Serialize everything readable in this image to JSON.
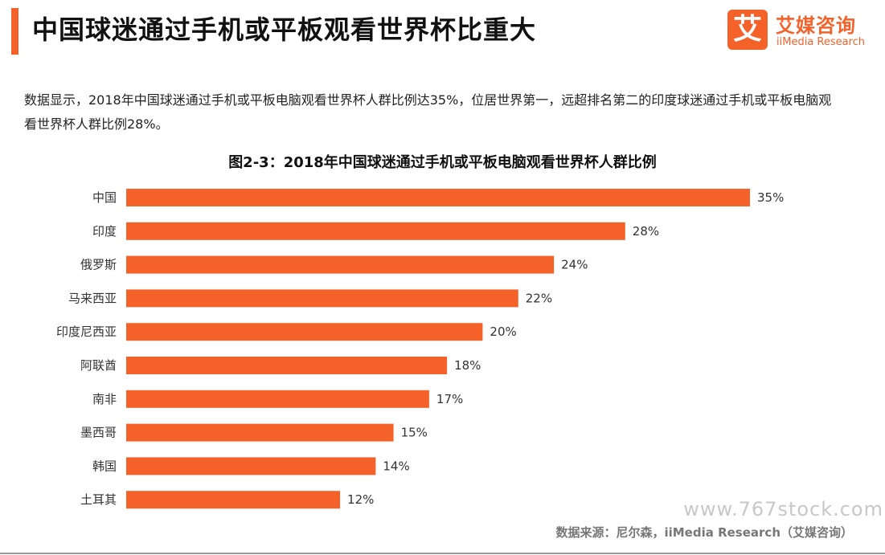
{
  "header": {
    "title": "中国球迷通过手机或平板观看世界杯比重大",
    "logo": {
      "mark": "艾",
      "name_cn": "艾媒咨询",
      "name_en": "iiMedia Research"
    }
  },
  "body": {
    "text": "数据显示，2018年中国球迷通过手机或平板电脑观看世界杯人群比例达35%，位居世界第一，远超排名第二的印度球迷通过手机或平板电脑观看世界杯人群比例28%。"
  },
  "chart_data": {
    "type": "bar",
    "orientation": "horizontal",
    "title": "图2-3：2018年中国球迷通过手机或平板电脑观看世界杯人群比例",
    "categories": [
      "中国",
      "印度",
      "俄罗斯",
      "马来西亚",
      "印度尼西亚",
      "阿联酋",
      "南非",
      "墨西哥",
      "韩国",
      "土耳其"
    ],
    "values": [
      35,
      28,
      24,
      22,
      20,
      18,
      17,
      15,
      14,
      12
    ],
    "value_suffix": "%",
    "xlim": [
      0,
      35
    ],
    "grid": false,
    "legend": "none",
    "bar_color": "#f4622a"
  },
  "footer": {
    "source": "数据来源：尼尔森，iiMedia Research（艾媒咨询）",
    "watermark": "www.767stock.com"
  }
}
